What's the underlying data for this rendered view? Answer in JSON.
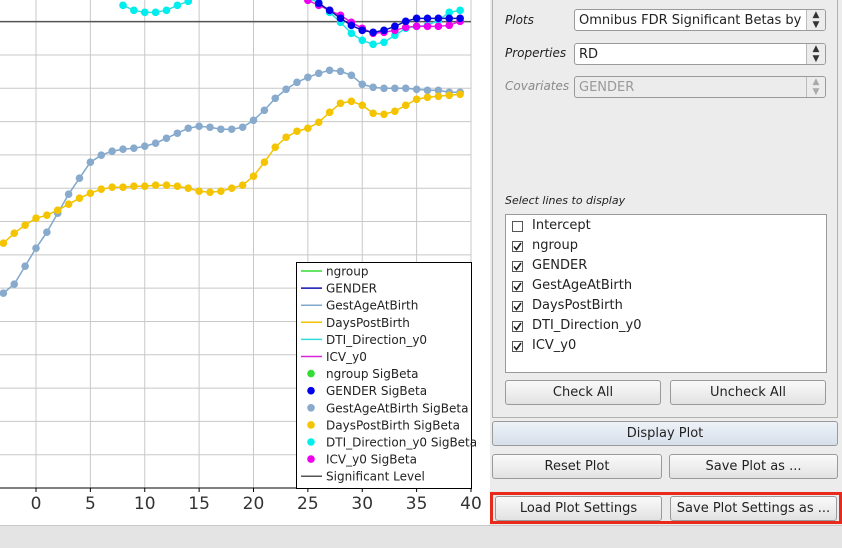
{
  "plot": {
    "type": "line",
    "xlim": [
      -3.31,
      40
    ],
    "xticks": [
      0,
      5,
      10,
      15,
      20,
      25,
      30,
      35,
      40
    ],
    "ylim": [
      0,
      14.65
    ],
    "ygrid": [
      1,
      2,
      3,
      4,
      5,
      6,
      7,
      8,
      9,
      10,
      11,
      12,
      13,
      14
    ],
    "significant_level": 14,
    "significant_color": "#555555",
    "x": [
      -3,
      -2,
      -1,
      0,
      1,
      2,
      3,
      4,
      5,
      6,
      7,
      8,
      9,
      10,
      11,
      12,
      13,
      14,
      15,
      16,
      17,
      18,
      19,
      20,
      21,
      22,
      23,
      24,
      25,
      26,
      27,
      28,
      29,
      30,
      31,
      32,
      33,
      34,
      35,
      36,
      37,
      38,
      39
    ],
    "series": [
      {
        "color": "#7fa8cc",
        "dot": "#88aacc",
        "values": [
          5.85,
          6.12,
          6.66,
          7.2,
          7.68,
          8.25,
          8.82,
          9.3,
          9.78,
          9.99,
          10.11,
          10.17,
          10.2,
          10.26,
          10.35,
          10.5,
          10.65,
          10.8,
          10.86,
          10.83,
          10.77,
          10.77,
          10.83,
          11.04,
          11.34,
          11.7,
          11.97,
          12.18,
          12.33,
          12.45,
          12.54,
          12.51,
          12.39,
          12.12,
          12.03,
          12.0,
          12.0,
          12.0,
          11.97,
          11.94,
          11.94,
          11.88,
          11.88
        ]
      },
      {
        "color": "#f2c200",
        "dot": "#f5c400",
        "values": [
          7.35,
          7.65,
          7.89,
          8.1,
          8.19,
          8.34,
          8.52,
          8.7,
          8.85,
          8.97,
          9.03,
          9.03,
          9.06,
          9.06,
          9.09,
          9.09,
          9.06,
          9.0,
          8.91,
          8.88,
          8.91,
          9.0,
          9.09,
          9.36,
          9.78,
          10.23,
          10.53,
          10.71,
          10.8,
          10.98,
          11.28,
          11.55,
          11.61,
          11.49,
          11.25,
          11.22,
          11.31,
          11.49,
          11.67,
          11.73,
          11.76,
          11.79,
          11.82
        ]
      },
      {
        "color": "#33dddd",
        "dot": "#00eeee",
        "values": [
          null,
          null,
          null,
          null,
          null,
          null,
          null,
          null,
          null,
          null,
          null,
          14.49,
          14.34,
          14.28,
          14.28,
          14.34,
          14.49,
          14.61,
          14.79,
          14.94,
          14.94,
          14.88,
          14.79,
          14.79,
          14.88,
          14.94,
          14.88,
          14.79,
          14.7,
          14.58,
          14.28,
          13.98,
          13.65,
          13.44,
          13.32,
          13.38,
          13.59,
          13.8,
          13.86,
          13.89,
          14.04,
          14.28,
          14.34
        ]
      },
      {
        "color": "#dd22dd",
        "dot": "#ee00ee",
        "values": [
          null,
          null,
          null,
          null,
          null,
          null,
          null,
          null,
          null,
          null,
          null,
          null,
          null,
          null,
          null,
          null,
          null,
          null,
          null,
          null,
          null,
          null,
          null,
          null,
          null,
          null,
          null,
          14.79,
          14.64,
          14.49,
          14.34,
          14.19,
          13.98,
          13.8,
          13.65,
          13.68,
          13.74,
          13.83,
          13.86,
          13.86,
          13.86,
          13.89,
          14.01
        ]
      },
      {
        "color": "#1010b0",
        "dot": "#0000ee",
        "values": [
          null,
          null,
          null,
          null,
          null,
          null,
          null,
          null,
          null,
          null,
          null,
          null,
          null,
          null,
          null,
          null,
          null,
          null,
          null,
          null,
          null,
          null,
          null,
          null,
          null,
          null,
          null,
          null,
          null,
          14.55,
          14.34,
          14.1,
          13.89,
          13.74,
          13.68,
          13.74,
          13.86,
          14.01,
          14.1,
          14.1,
          14.1,
          14.1,
          14.1
        ]
      }
    ],
    "legend": [
      {
        "label": "ngroup",
        "color": "#33dd33",
        "marker": "line"
      },
      {
        "label": "GENDER",
        "color": "#1010b0",
        "marker": "line"
      },
      {
        "label": "GestAgeAtBirth",
        "color": "#7fa8cc",
        "marker": "line"
      },
      {
        "label": "DaysPostBirth",
        "color": "#f2c200",
        "marker": "line"
      },
      {
        "label": "DTI_Direction_y0",
        "color": "#33dddd",
        "marker": "line"
      },
      {
        "label": "ICV_y0",
        "color": "#dd22dd",
        "marker": "line"
      },
      {
        "label": "ngroup SigBeta",
        "color": "#33dd33",
        "marker": "dot"
      },
      {
        "label": "GENDER SigBeta",
        "color": "#0000ee",
        "marker": "dot"
      },
      {
        "label": "GestAgeAtBirth SigBeta",
        "color": "#88aacc",
        "marker": "dot"
      },
      {
        "label": "DaysPostBirth SigBeta",
        "color": "#f5c400",
        "marker": "dot"
      },
      {
        "label": "DTI_Direction_y0 SigBeta",
        "color": "#00eeee",
        "marker": "dot"
      },
      {
        "label": "ICV_y0 SigBeta",
        "color": "#ee00ee",
        "marker": "dot"
      },
      {
        "label": "Significant Level",
        "color": "#555555",
        "marker": "line"
      }
    ]
  },
  "panel": {
    "plots": {
      "label": "Plots",
      "value": "Omnibus FDR Significant Betas by P"
    },
    "properties": {
      "label": "Properties",
      "value": "RD"
    },
    "covariates": {
      "label": "Covariates",
      "value": "GENDER"
    },
    "lines_title": "Select lines to display",
    "lines": [
      {
        "label": "Intercept",
        "checked": false
      },
      {
        "label": "ngroup",
        "checked": true
      },
      {
        "label": "GENDER",
        "checked": true
      },
      {
        "label": "GestAgeAtBirth",
        "checked": true
      },
      {
        "label": "DaysPostBirth",
        "checked": true
      },
      {
        "label": "DTI_Direction_y0",
        "checked": true
      },
      {
        "label": "ICV_y0",
        "checked": true
      }
    ],
    "check_all": "Check All",
    "uncheck_all": "Uncheck All",
    "display_plot": "Display Plot",
    "reset_plot": "Reset Plot",
    "save_plot": "Save Plot as ...",
    "load_settings": "Load Plot Settings",
    "save_settings": "Save Plot Settings as ..."
  }
}
